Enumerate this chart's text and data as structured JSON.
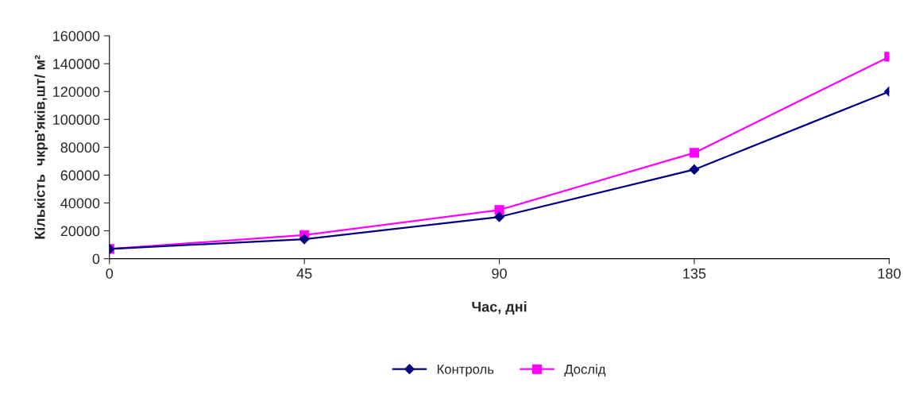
{
  "chart_data": {
    "type": "line",
    "xlabel": "Час, дні",
    "ylabel": "Кількість  чкрв'яків,шт/ м²",
    "x": [
      0,
      45,
      90,
      135,
      180
    ],
    "xlim": [
      0,
      180
    ],
    "xticks": [
      0,
      45,
      90,
      135,
      180
    ],
    "ylim": [
      0,
      160000
    ],
    "yticks": [
      0,
      20000,
      40000,
      60000,
      80000,
      100000,
      120000,
      140000,
      160000
    ],
    "grid": false,
    "legend": "bottom",
    "series": [
      {
        "name": "Контроль",
        "color": "#000080",
        "marker": "diamond",
        "values": [
          7000,
          14000,
          30000,
          64000,
          120000
        ]
      },
      {
        "name": "Дослід",
        "color": "#ff00ff",
        "marker": "square",
        "values": [
          7000,
          17000,
          35000,
          76000,
          145000
        ]
      }
    ]
  }
}
